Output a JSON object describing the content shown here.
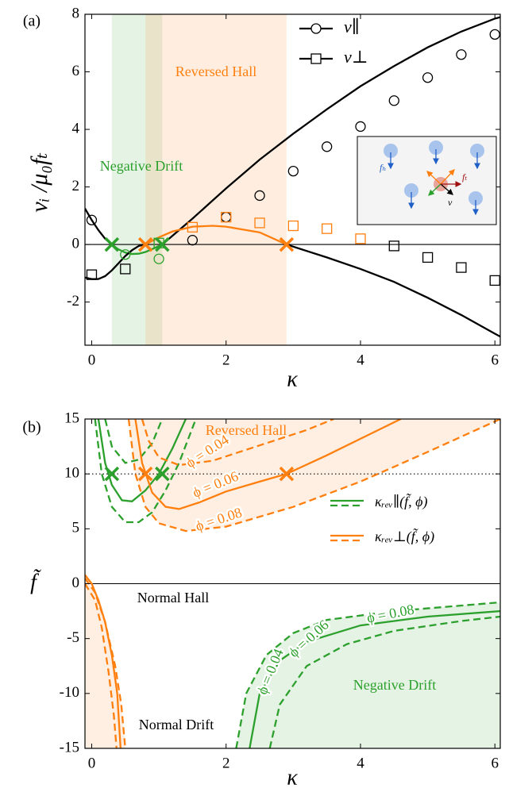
{
  "chart_data": [
    {
      "type": "line",
      "panel": "(a)",
      "x_label": "κ",
      "y_label": "vᵢ /μ₀fₜ",
      "xlim": [
        -0.1,
        6.08
      ],
      "ylim": [
        -3.5,
        8
      ],
      "xticks": [
        0,
        2,
        4,
        6
      ],
      "yticks": [
        -2,
        0,
        2,
        4,
        6,
        8
      ],
      "regions": [
        {
          "x": [
            0.3,
            1.05
          ],
          "color": "rgba(44,160,44,0.12)"
        },
        {
          "x": [
            0.8,
            2.9
          ],
          "color": "rgba(255,127,14,0.13)"
        }
      ],
      "hlines": [
        {
          "value": 0,
          "dash": "solid"
        }
      ],
      "series": [
        {
          "name": "v∥",
          "color": "#000000",
          "marker": "circle",
          "x": [
            0,
            0.5,
            1,
            1.5,
            2,
            2.5,
            3,
            3.5,
            4,
            4.5,
            5,
            5.5,
            6
          ],
          "values": [
            0.85,
            -0.35,
            -0.5,
            0.15,
            0.95,
            1.7,
            2.55,
            3.4,
            4.1,
            5.0,
            5.8,
            6.6,
            7.3
          ],
          "point_colors": [
            "#000000",
            "#2ca02c",
            "#2ca02c",
            "#000000",
            "#000000",
            "#000000",
            "#000000",
            "#000000",
            "#000000",
            "#000000",
            "#000000",
            "#000000",
            "#000000"
          ]
        },
        {
          "name": "v⊥",
          "color": "#000000",
          "marker": "square",
          "x": [
            0,
            0.5,
            1,
            1.5,
            2,
            2.5,
            3,
            3.5,
            4,
            4.5,
            5,
            5.5,
            6
          ],
          "values": [
            -1.05,
            -0.85,
            0.05,
            0.6,
            0.95,
            0.75,
            0.65,
            0.55,
            0.2,
            -0.05,
            -0.45,
            -0.8,
            -1.25
          ],
          "point_colors": [
            "#000000",
            "#000000",
            "#2ca02c",
            "#ff7f0e",
            "#ff7f0e",
            "#ff7f0e",
            "#ff7f0e",
            "#ff7f0e",
            "#ff7f0e",
            "#000000",
            "#000000",
            "#000000",
            "#000000"
          ]
        },
        {
          "color": "#000000",
          "dash": "solid",
          "x": [
            -0.1,
            0,
            0.1,
            0.2,
            0.3
          ],
          "values": [
            1.25,
            0.85,
            0.5,
            0.2,
            0
          ]
        },
        {
          "color": "#2ca02c",
          "dash": "solid",
          "x": [
            0.3,
            0.4,
            0.5,
            0.6,
            0.7,
            0.8,
            0.9,
            1.0,
            1.05
          ],
          "values": [
            0,
            -0.17,
            -0.28,
            -0.33,
            -0.32,
            -0.26,
            -0.16,
            -0.05,
            0
          ]
        },
        {
          "color": "#000000",
          "dash": "solid",
          "x": [
            1.05,
            1.5,
            2,
            2.5,
            3,
            3.5,
            4,
            4.5,
            5,
            5.5,
            6,
            6.08
          ],
          "values": [
            0,
            0.9,
            1.95,
            2.95,
            3.85,
            4.7,
            5.5,
            6.2,
            6.85,
            7.4,
            7.85,
            7.9
          ]
        },
        {
          "color": "#000000",
          "dash": "solid",
          "x": [
            -0.1,
            0,
            0.1,
            0.2,
            0.3,
            0.4,
            0.5,
            0.6,
            0.7,
            0.8
          ],
          "values": [
            -1.15,
            -1.2,
            -1.2,
            -1.1,
            -0.9,
            -0.65,
            -0.4,
            -0.2,
            -0.05,
            0
          ]
        },
        {
          "color": "#ff7f0e",
          "dash": "solid",
          "x": [
            0.8,
            1.0,
            1.2,
            1.5,
            1.8,
            2.0,
            2.5,
            2.9
          ],
          "values": [
            0,
            0.25,
            0.45,
            0.62,
            0.65,
            0.62,
            0.42,
            0
          ]
        },
        {
          "color": "#000000",
          "dash": "solid",
          "x": [
            2.9,
            3.5,
            4,
            4.5,
            5,
            5.5,
            6,
            6.08
          ],
          "values": [
            0,
            -0.45,
            -0.85,
            -1.3,
            -1.85,
            -2.45,
            -3.1,
            -3.2
          ]
        }
      ],
      "crossings": {
        "x": [
          0.3,
          1.05,
          0.8,
          2.9
        ],
        "values": [
          0,
          0,
          0,
          0
        ],
        "colors": [
          "#2ca02c",
          "#2ca02c",
          "#ff7f0e",
          "#ff7f0e"
        ]
      },
      "annotations": [
        {
          "text": "Reversed Hall",
          "color": "#ff7f0e"
        },
        {
          "text": "Negative Drift",
          "color": "#2ca02c"
        }
      ],
      "inset_labels": [
        "fₕ",
        "fₜ",
        "v"
      ]
    },
    {
      "type": "line",
      "panel": "(b)",
      "x_label": "κ",
      "y_label": "f̃",
      "xlim": [
        -0.1,
        6.08
      ],
      "ylim": [
        -15,
        15
      ],
      "xticks": [
        0,
        2,
        4,
        6
      ],
      "yticks": [
        -15,
        -10,
        -5,
        0,
        5,
        10,
        15
      ],
      "hlines": [
        {
          "value": 0,
          "dash": "solid"
        },
        {
          "value": 10,
          "dash": "dotted"
        }
      ],
      "series": [
        {
          "color": "#2ca02c",
          "dash": "dashed",
          "x": [
            0.2,
            0.3,
            0.5,
            0.7,
            0.9,
            1.05
          ],
          "values": [
            15,
            12.5,
            11,
            11.3,
            12.8,
            15
          ]
        },
        {
          "name": "κᵣₑᵥ∥(f̃, ϕ)",
          "color": "#2ca02c",
          "dash": "solid",
          "x": [
            0.1,
            0.2,
            0.3,
            0.45,
            0.6,
            0.8,
            1.0,
            1.2,
            1.4
          ],
          "values": [
            15,
            11,
            9,
            7.6,
            7.5,
            8.5,
            10,
            12.3,
            15
          ]
        },
        {
          "color": "#2ca02c",
          "dash": "dashed",
          "x": [
            0.05,
            0.15,
            0.3,
            0.5,
            0.7,
            0.9,
            1.1,
            1.3,
            1.55
          ],
          "values": [
            15,
            10,
            7,
            5.6,
            5.6,
            6.5,
            8.5,
            11,
            15
          ]
        },
        {
          "color": "#ff7f0e",
          "dash": "dashed",
          "x": [
            0.75,
            0.85,
            1,
            1.3,
            1.8,
            2.5,
            3.2,
            3.6
          ],
          "values": [
            15,
            13,
            11.5,
            10.8,
            11.2,
            12.6,
            14,
            15
          ]
        },
        {
          "name": "κᵣₑᵥ⊥(f̃, ϕ)",
          "color": "#ff7f0e",
          "dash": "solid",
          "x": [
            0.65,
            0.75,
            0.9,
            1.1,
            1.3,
            1.6,
            2,
            2.5,
            2.9,
            3.5,
            4,
            4.6
          ],
          "values": [
            15,
            11,
            8.3,
            7,
            6.8,
            7.4,
            8.4,
            9.3,
            10,
            11.7,
            13.2,
            15
          ]
        },
        {
          "color": "#ff7f0e",
          "dash": "dashed",
          "fill": "top",
          "fill_color": "rgba(255,127,14,0.12)",
          "x": [
            0.55,
            0.65,
            0.8,
            1.0,
            1.4,
            2,
            3,
            4,
            5,
            6.08
          ],
          "values": [
            15,
            10,
            7,
            5.5,
            4.8,
            5.2,
            7,
            9.3,
            12,
            15
          ]
        },
        {
          "color": "#ff7f0e",
          "dash": "dashed",
          "fill": "left",
          "fill_color": "rgba(255,127,14,0.12)",
          "x": [
            -0.1,
            0.05,
            0.2,
            0.35,
            0.44,
            0.5
          ],
          "values": [
            0.5,
            -0.8,
            -3.5,
            -7.5,
            -11,
            -15
          ]
        },
        {
          "color": "#ff7f0e",
          "dash": "solid",
          "x": [
            -0.1,
            0,
            0.1,
            0.2,
            0.3,
            0.38,
            0.43
          ],
          "values": [
            0.8,
            0,
            -1.5,
            -3.5,
            -6.5,
            -10,
            -15
          ]
        },
        {
          "color": "#ff7f0e",
          "dash": "dashed",
          "x": [
            -0.1,
            0.05,
            0.15,
            0.25,
            0.33,
            0.37
          ],
          "values": [
            0,
            -1.5,
            -4,
            -8,
            -12,
            -15
          ]
        },
        {
          "color": "#2ca02c",
          "dash": "dashed",
          "x": [
            2.65,
            2.8,
            3.2,
            3.8,
            4.5,
            5.5,
            6.08
          ],
          "values": [
            -15,
            -11,
            -7.5,
            -5.5,
            -4.3,
            -3.4,
            -3
          ]
        },
        {
          "color": "#2ca02c",
          "dash": "solid",
          "x": [
            2.35,
            2.5,
            2.8,
            3.2,
            4,
            5,
            6.08
          ],
          "values": [
            -15,
            -10,
            -7,
            -5.3,
            -3.8,
            -3,
            -2.5
          ]
        },
        {
          "color": "#2ca02c",
          "dash": "dashed",
          "fill": "bottom",
          "fill_color": "rgba(44,160,44,0.12)",
          "x": [
            2.15,
            2.3,
            2.6,
            3,
            3.5,
            4.5,
            6.08
          ],
          "values": [
            -15,
            -10,
            -6.5,
            -4.5,
            -3.3,
            -2.5,
            -1.7
          ]
        }
      ],
      "crossings": {
        "x": [
          0.3,
          1.05,
          0.8,
          2.9
        ],
        "values": [
          10,
          10,
          10,
          10
        ],
        "colors": [
          "#2ca02c",
          "#2ca02c",
          "#ff7f0e",
          "#ff7f0e"
        ]
      },
      "annotations": [
        {
          "text": "Reversed Hall",
          "color": "#ff7f0e"
        },
        {
          "text": "Normal Hall",
          "color": "#000000"
        },
        {
          "text": "Normal Drift",
          "color": "#000000"
        },
        {
          "text": "Negative Drift",
          "color": "#2ca02c"
        },
        {
          "text": "ϕ = 0.04",
          "color": "#ff7f0e"
        },
        {
          "text": "ϕ = 0.06",
          "color": "#ff7f0e"
        },
        {
          "text": "ϕ = 0.08",
          "color": "#ff7f0e"
        },
        {
          "text": "ϕ = 0.04",
          "color": "#2ca02c"
        },
        {
          "text": "ϕ = 0.06",
          "color": "#2ca02c"
        },
        {
          "text": "ϕ = 0.08",
          "color": "#2ca02c"
        }
      ]
    }
  ]
}
